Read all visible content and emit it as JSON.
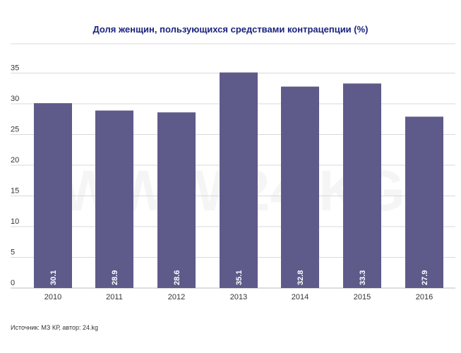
{
  "chart_data": {
    "type": "bar",
    "title": "Доля женщин, пользующихся средствами контрацепции (%)",
    "categories": [
      "2010",
      "2011",
      "2012",
      "2013",
      "2014",
      "2015",
      "2016"
    ],
    "values": [
      30.1,
      28.9,
      28.6,
      35.1,
      32.8,
      33.3,
      27.9
    ],
    "data_labels": [
      "30.1",
      "28.9",
      "28.6",
      "35.1",
      "32.8",
      "33.3",
      "27.9"
    ],
    "yticks": [
      0,
      5,
      10,
      15,
      20,
      25,
      30,
      35
    ],
    "ylim": [
      0,
      40
    ],
    "xlabel": "",
    "ylabel": "",
    "grid": true,
    "legend": "none",
    "bar_color": "#5e5a8a",
    "grid_color": "#d9d9d9",
    "watermark": "WWW.24.KG"
  },
  "source": "Источник: МЗ КР, автор: 24.kg"
}
